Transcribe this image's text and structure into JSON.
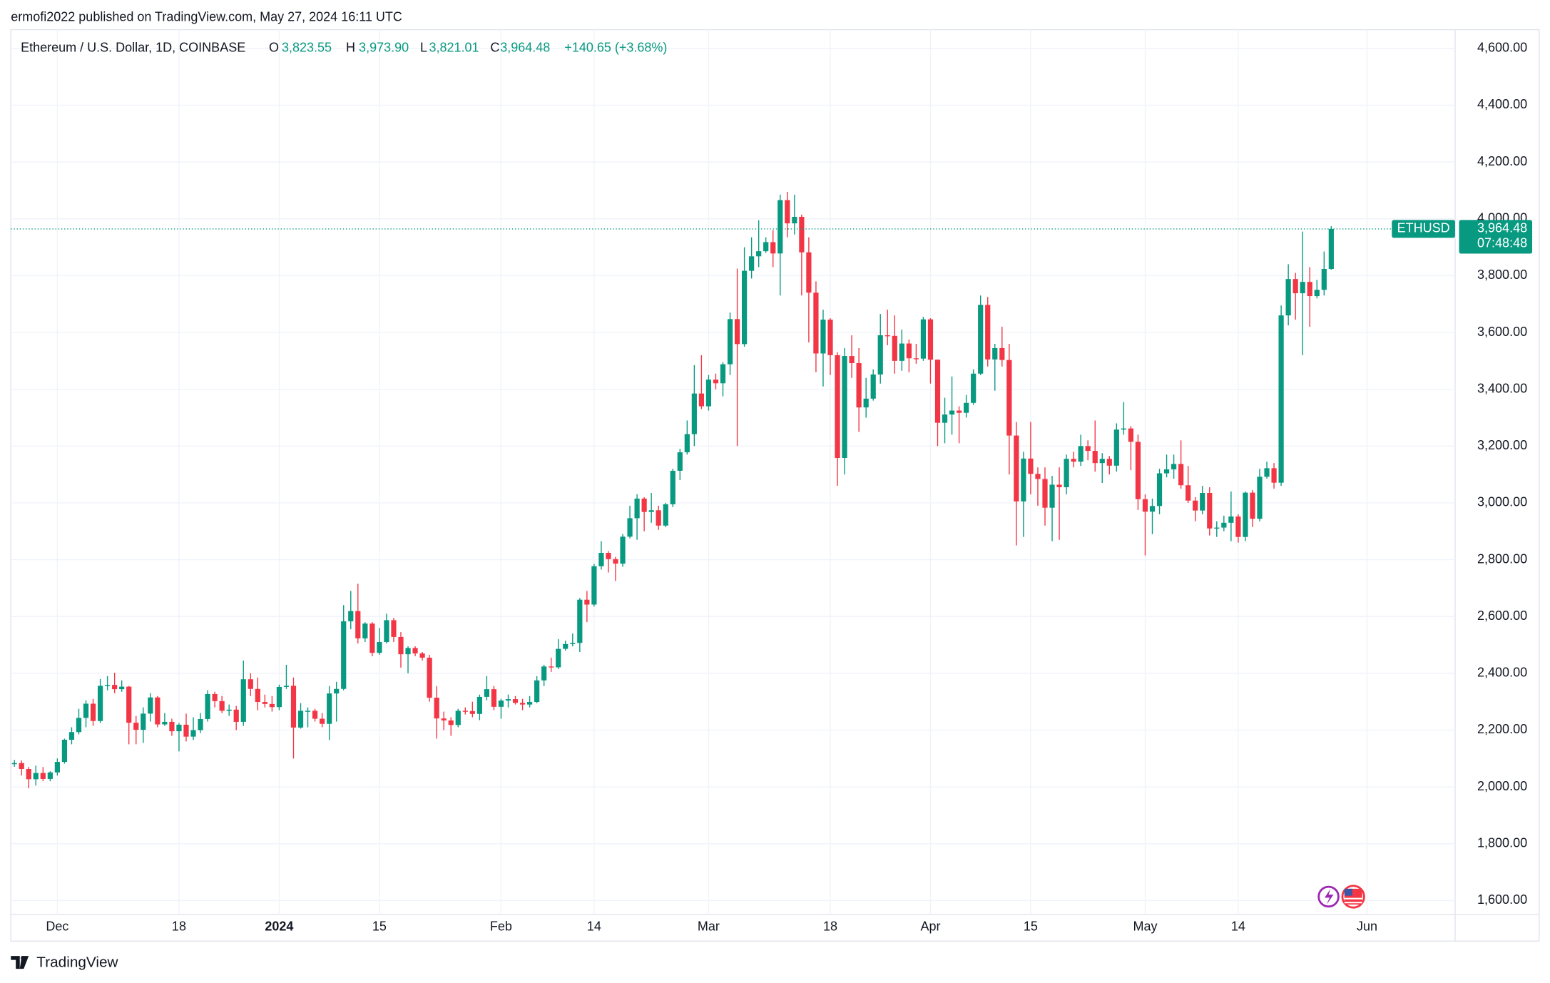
{
  "publisher": "ermofi2022 published on TradingView.com, May 27, 2024 16:11 UTC",
  "brand": "TradingView",
  "chart_data": {
    "type": "candlestick",
    "title": "Ethereum / U.S. Dollar, 1D, COINBASE",
    "ohlc_legend": [
      {
        "key": "O",
        "value": "3,823.55"
      },
      {
        "key": "H",
        "value": "3,973.90"
      },
      {
        "key": "L",
        "value": "3,821.01"
      },
      {
        "key": "C",
        "value": "3,964.48"
      }
    ],
    "change": "+140.65 (+3.68%)",
    "symbol": "ETHUSD",
    "last_price_label": "3,964.48",
    "countdown": "07:48:48",
    "up_color": "#089981",
    "down_color": "#f23645",
    "grid": true,
    "ylim": [
      1551,
      4666
    ],
    "yticks": [
      {
        "value": 1600,
        "label": "1,600.00"
      },
      {
        "value": 1800,
        "label": "1,800.00"
      },
      {
        "value": 2000,
        "label": "2,000.00"
      },
      {
        "value": 2200,
        "label": "2,200.00"
      },
      {
        "value": 2400,
        "label": "2,400.00"
      },
      {
        "value": 2600,
        "label": "2,600.00"
      },
      {
        "value": 2800,
        "label": "2,800.00"
      },
      {
        "value": 3000,
        "label": "3,000.00"
      },
      {
        "value": 3200,
        "label": "3,200.00"
      },
      {
        "value": 3400,
        "label": "3,400.00"
      },
      {
        "value": 3600,
        "label": "3,600.00"
      },
      {
        "value": 3800,
        "label": "3,800.00"
      },
      {
        "value": 4000,
        "label": "4,000.00"
      },
      {
        "value": 4200,
        "label": "4,200.00"
      },
      {
        "value": 4400,
        "label": "4,400.00"
      },
      {
        "value": 4600,
        "label": "4,600.00"
      }
    ],
    "categories": [
      null,
      null,
      null,
      null,
      null,
      null,
      "Dec",
      null,
      null,
      null,
      null,
      null,
      null,
      null,
      null,
      null,
      null,
      null,
      null,
      null,
      null,
      null,
      null,
      "18",
      null,
      null,
      null,
      null,
      null,
      null,
      null,
      null,
      null,
      null,
      null,
      null,
      null,
      "2024",
      null,
      null,
      null,
      null,
      null,
      null,
      null,
      null,
      null,
      null,
      null,
      null,
      null,
      "15",
      null,
      null,
      null,
      null,
      null,
      null,
      null,
      null,
      null,
      null,
      null,
      null,
      null,
      null,
      null,
      null,
      "Feb",
      null,
      null,
      null,
      null,
      null,
      null,
      null,
      null,
      null,
      null,
      null,
      null,
      "14",
      null,
      null,
      null,
      null,
      null,
      null,
      null,
      null,
      null,
      null,
      null,
      null,
      null,
      null,
      null,
      "Mar",
      null,
      null,
      null,
      null,
      null,
      null,
      null,
      null,
      null,
      null,
      null,
      null,
      null,
      null,
      null,
      null,
      "18",
      null,
      null,
      null,
      null,
      null,
      null,
      null,
      null,
      null,
      null,
      null,
      null,
      null,
      "Apr",
      null,
      null,
      null,
      null,
      null,
      null,
      null,
      null,
      null,
      null,
      null,
      null,
      null,
      "15",
      null,
      null,
      null,
      null,
      null,
      null,
      null,
      null,
      null,
      null,
      null,
      null,
      null,
      null,
      null,
      "May",
      null,
      null,
      null,
      null,
      null,
      null,
      null,
      null,
      null,
      null,
      null,
      null,
      "14",
      null,
      null,
      null,
      null,
      null,
      null,
      null,
      null,
      null,
      null,
      null,
      null,
      null,
      null,
      null,
      null,
      null,
      "Jun"
    ],
    "open": [
      2080,
      2084,
      2063,
      2027,
      2049,
      2028,
      2051,
      2088,
      2166,
      2193,
      2243,
      2293,
      2232,
      2356,
      2359,
      2344,
      2353,
      2226,
      2201,
      2258,
      2315,
      2220,
      2229,
      2196,
      2219,
      2177,
      2200,
      2239,
      2327,
      2302,
      2268,
      2272,
      2229,
      2379,
      2345,
      2299,
      2292,
      2281,
      2352,
      2356,
      2209,
      2268,
      2268,
      2240,
      2222,
      2329,
      2345,
      2583,
      2619,
      2523,
      2575,
      2472,
      2510,
      2587,
      2528,
      2467,
      2489,
      2470,
      2455,
      2314,
      2241,
      2234,
      2218,
      2268,
      2267,
      2257,
      2317,
      2344,
      2282,
      2304,
      2309,
      2296,
      2290,
      2299,
      2375,
      2424,
      2421,
      2486,
      2503,
      2507,
      2659,
      2642,
      2777,
      2824,
      2802,
      2786,
      2881,
      2946,
      3015,
      2968,
      2974,
      2920,
      2995,
      3113,
      3178,
      3242,
      3385,
      3340,
      3434,
      3421,
      3488,
      3647,
      3559,
      3817,
      3868,
      3886,
      3918,
      3878,
      4066,
      3984,
      4007,
      3882,
      3740,
      3526,
      3645,
      3520,
      3158,
      3517,
      3492,
      3336,
      3367,
      3452,
      3590,
      3588,
      3500,
      3561,
      3509,
      3508,
      3646,
      3504,
      3282,
      3311,
      3325,
      3317,
      3352,
      3455,
      3697,
      3505,
      3545,
      3503,
      3237,
      3005,
      3156,
      3102,
      3084,
      2983,
      3064,
      3055,
      3155,
      3145,
      3200,
      3183,
      3140,
      3155,
      3131,
      3258,
      3262,
      3215,
      3013,
      2969,
      2989,
      3104,
      3118,
      3137,
      3062,
      3008,
      2973,
      3035,
      2910,
      2913,
      2930,
      2952,
      2880,
      3036,
      2944,
      3092,
      3122,
      3071,
      3660,
      3788,
      3738,
      3778,
      3728,
      3750,
      3823.55,
      null,
      null,
      null,
      null,
      null
    ],
    "high": [
      2095,
      2093,
      2070,
      2075,
      2070,
      2055,
      2100,
      2170,
      2210,
      2275,
      2305,
      2310,
      2380,
      2390,
      2402,
      2375,
      2355,
      2250,
      2280,
      2330,
      2320,
      2260,
      2240,
      2225,
      2258,
      2245,
      2260,
      2340,
      2335,
      2320,
      2290,
      2285,
      2445,
      2400,
      2385,
      2325,
      2320,
      2360,
      2430,
      2385,
      2295,
      2280,
      2275,
      2260,
      2355,
      2370,
      2640,
      2690,
      2715,
      2580,
      2580,
      2560,
      2610,
      2595,
      2545,
      2495,
      2495,
      2475,
      2465,
      2355,
      2265,
      2245,
      2275,
      2280,
      2300,
      2325,
      2390,
      2355,
      2310,
      2325,
      2320,
      2310,
      2320,
      2390,
      2430,
      2455,
      2520,
      2515,
      2540,
      2665,
      2690,
      2785,
      2865,
      2830,
      2810,
      2890,
      2990,
      3030,
      3020,
      3035,
      2990,
      3000,
      3120,
      3190,
      3290,
      3485,
      3520,
      3450,
      3455,
      3495,
      3670,
      3825,
      3900,
      3935,
      3995,
      3935,
      3960,
      4085,
      4095,
      4085,
      4015,
      3935,
      3780,
      3680,
      3650,
      3530,
      3545,
      3590,
      3545,
      3440,
      3470,
      3665,
      3680,
      3660,
      3610,
      3575,
      3560,
      3655,
      3650,
      3505,
      3370,
      3445,
      3340,
      3380,
      3470,
      3730,
      3725,
      3560,
      3620,
      3560,
      3285,
      3180,
      3285,
      3125,
      3125,
      3095,
      3125,
      3170,
      3180,
      3240,
      3220,
      3290,
      3175,
      3165,
      3280,
      3355,
      3270,
      3240,
      3030,
      3015,
      3120,
      3170,
      3170,
      3220,
      3130,
      3020,
      3060,
      3055,
      2935,
      2955,
      3040,
      2960,
      3040,
      3045,
      3120,
      3145,
      3140,
      3695,
      3840,
      3810,
      3955,
      3830,
      3785,
      3885,
      3973.9,
      null,
      null,
      null,
      null,
      null
    ],
    "low": [
      2071,
      2040,
      1995,
      2005,
      2020,
      2020,
      2040,
      2082,
      2150,
      2185,
      2210,
      2215,
      2225,
      2340,
      2330,
      2335,
      2150,
      2150,
      2155,
      2230,
      2210,
      2215,
      2180,
      2125,
      2160,
      2165,
      2190,
      2230,
      2280,
      2260,
      2250,
      2200,
      2215,
      2320,
      2270,
      2280,
      2265,
      2270,
      2345,
      2100,
      2205,
      2210,
      2230,
      2210,
      2165,
      2230,
      2340,
      2555,
      2505,
      2510,
      2460,
      2465,
      2505,
      2510,
      2420,
      2400,
      2460,
      2445,
      2300,
      2170,
      2200,
      2180,
      2210,
      2255,
      2245,
      2235,
      2305,
      2270,
      2240,
      2280,
      2290,
      2270,
      2280,
      2295,
      2355,
      2405,
      2415,
      2480,
      2495,
      2475,
      2580,
      2635,
      2765,
      2755,
      2725,
      2775,
      2875,
      2870,
      2900,
      2930,
      2905,
      2915,
      2985,
      3080,
      3170,
      3200,
      3330,
      3325,
      3400,
      3375,
      3450,
      3200,
      3550,
      3790,
      3830,
      3880,
      3830,
      3730,
      3935,
      3945,
      3730,
      3565,
      3460,
      3410,
      3450,
      3060,
      3100,
      3440,
      3250,
      3300,
      3360,
      3420,
      3555,
      3455,
      3465,
      3460,
      3490,
      3500,
      3420,
      3200,
      3210,
      3240,
      3210,
      3300,
      3345,
      3450,
      3480,
      3395,
      3480,
      3100,
      2850,
      2880,
      3030,
      2990,
      2920,
      2865,
      2870,
      3030,
      3125,
      3130,
      3150,
      3110,
      3070,
      3100,
      3110,
      3240,
      3115,
      2975,
      2815,
      2890,
      2960,
      3090,
      3085,
      3050,
      3000,
      2935,
      2960,
      2885,
      2880,
      2900,
      2865,
      2860,
      2865,
      2915,
      2935,
      3085,
      3050,
      3060,
      3625,
      3645,
      3520,
      3620,
      3720,
      3730,
      3821.01,
      null,
      null,
      null,
      null,
      null
    ],
    "close": [
      2084,
      2063,
      2027,
      2049,
      2028,
      2051,
      2088,
      2166,
      2193,
      2243,
      2293,
      2232,
      2356,
      2359,
      2344,
      2353,
      2226,
      2201,
      2258,
      2315,
      2220,
      2229,
      2196,
      2219,
      2177,
      2200,
      2239,
      2327,
      2302,
      2268,
      2272,
      2229,
      2379,
      2345,
      2299,
      2292,
      2281,
      2352,
      2356,
      2209,
      2268,
      2268,
      2240,
      2222,
      2329,
      2345,
      2583,
      2619,
      2523,
      2575,
      2472,
      2510,
      2587,
      2528,
      2467,
      2489,
      2470,
      2455,
      2314,
      2241,
      2234,
      2218,
      2268,
      2267,
      2257,
      2317,
      2344,
      2282,
      2304,
      2309,
      2296,
      2290,
      2299,
      2375,
      2424,
      2421,
      2486,
      2503,
      2507,
      2659,
      2642,
      2777,
      2824,
      2802,
      2786,
      2881,
      2946,
      3015,
      2968,
      2974,
      2920,
      2995,
      3113,
      3178,
      3242,
      3385,
      3340,
      3434,
      3421,
      3488,
      3647,
      3559,
      3817,
      3868,
      3886,
      3918,
      3878,
      4066,
      3984,
      4007,
      3882,
      3740,
      3526,
      3645,
      3520,
      3158,
      3517,
      3492,
      3336,
      3367,
      3452,
      3590,
      3588,
      3500,
      3561,
      3509,
      3508,
      3646,
      3504,
      3282,
      3311,
      3325,
      3317,
      3352,
      3455,
      3697,
      3505,
      3545,
      3503,
      3237,
      3005,
      3156,
      3102,
      3084,
      2983,
      3064,
      3055,
      3155,
      3145,
      3200,
      3183,
      3140,
      3155,
      3131,
      3258,
      3262,
      3215,
      3013,
      2969,
      2989,
      3104,
      3118,
      3137,
      3062,
      3008,
      2973,
      3035,
      2910,
      2913,
      2930,
      2952,
      2880,
      3036,
      2944,
      3092,
      3122,
      3071,
      3660,
      3788,
      3738,
      3778,
      3728,
      3750,
      3823.55,
      3964.48,
      null,
      null,
      null,
      null,
      null
    ]
  }
}
